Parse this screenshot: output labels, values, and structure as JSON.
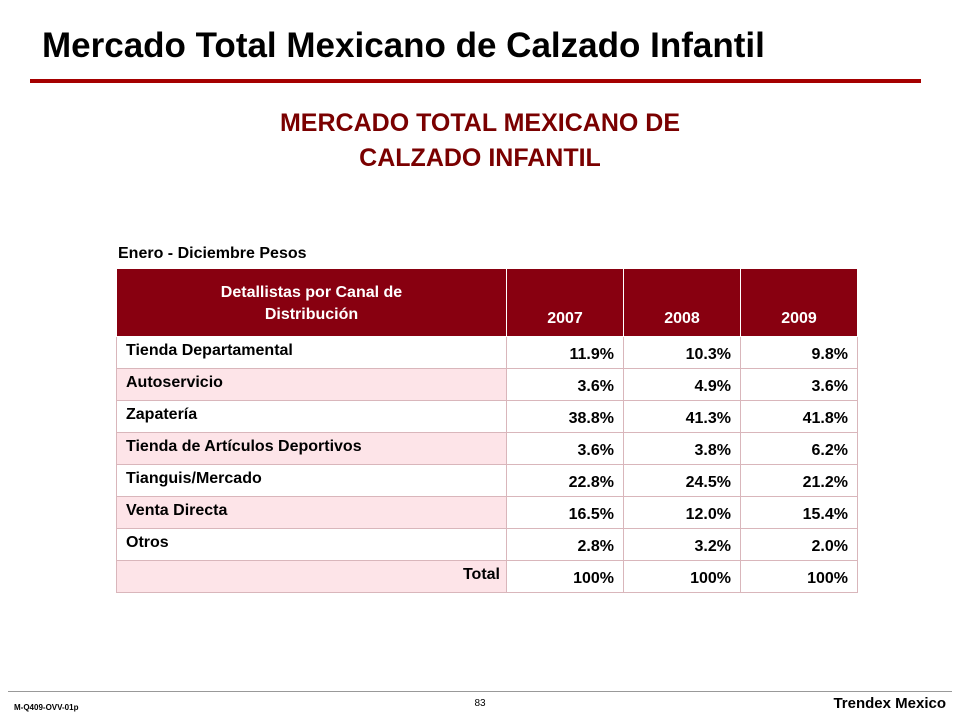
{
  "slide": {
    "title": "Mercado Total Mexicano de Calzado Infantil",
    "subtitle_line1": "MERCADO TOTAL MEXICANO DE",
    "subtitle_line2": "CALZADO INFANTIL",
    "period": "Enero - Diciembre Pesos",
    "colors": {
      "rule": "#a50000",
      "header_bg": "#880010",
      "row_tint": "#fde4e8"
    }
  },
  "table": {
    "header_line1": "Detallistas por Canal de",
    "header_line2": "Distribución",
    "years": [
      "2007",
      "2008",
      "2009"
    ],
    "rows": [
      {
        "label": "Tienda Departamental",
        "values": [
          "11.9%",
          "10.3%",
          "9.8%"
        ]
      },
      {
        "label": "Autoservicio",
        "values": [
          "3.6%",
          "4.9%",
          "3.6%"
        ]
      },
      {
        "label": "Zapatería",
        "values": [
          "38.8%",
          "41.3%",
          "41.8%"
        ]
      },
      {
        "label": "Tienda de Artículos Deportivos",
        "values": [
          "3.6%",
          "3.8%",
          "6.2%"
        ]
      },
      {
        "label": "Tianguis/Mercado",
        "values": [
          "22.8%",
          "24.5%",
          "21.2%"
        ]
      },
      {
        "label": "Venta Directa",
        "values": [
          "16.5%",
          "12.0%",
          "15.4%"
        ]
      },
      {
        "label": "Otros",
        "values": [
          "2.8%",
          "3.2%",
          "2.0%"
        ]
      }
    ],
    "total": {
      "label": "Total",
      "values": [
        "100%",
        "100%",
        "100%"
      ]
    }
  },
  "footer": {
    "code": "M-Q409-OVV-01p",
    "page": "83",
    "brand": "Trendex Mexico"
  }
}
